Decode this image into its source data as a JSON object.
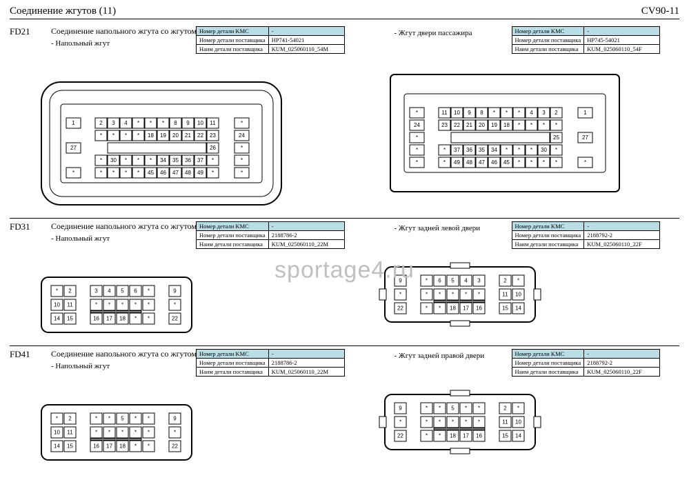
{
  "header": {
    "left": "Соединение   жгутов   (11)",
    "right": "CV90-11"
  },
  "watermark": "sportage4.ru",
  "th": [
    "Номер  детали  KMC",
    "Номер детали поставщика",
    "Наим детали поставщика"
  ],
  "sections": [
    {
      "id": "FD21",
      "title": "Соединение   напольного   жгута  со  жгутом  двери  пассажира",
      "left": {
        "sub": "- Напольный жгут",
        "vals": [
          "-",
          "HP741-54021",
          "KUM_025060110_54M"
        ]
      },
      "right": {
        "sub": "- Жгут двери  пассажира",
        "vals": [
          "-",
          "HP745-54021",
          "KUM_025060110_54F"
        ]
      },
      "big": true,
      "pinsL": {
        "r1": [
          "1",
          "",
          "2",
          "3",
          "4",
          "*",
          "*",
          "*",
          "8",
          "9",
          "10",
          "11",
          "",
          "*"
        ],
        "r2": [
          "",
          "",
          "*",
          "*",
          "*",
          "*",
          "18",
          "19",
          "20",
          "21",
          "22",
          "23",
          "",
          "24"
        ],
        "r3": [
          "27",
          "",
          "",
          "25",
          "",
          "",
          "",
          "",
          "",
          "",
          "",
          "26",
          "",
          "*"
        ],
        "r4": [
          "",
          "",
          "*",
          "30",
          "*",
          "*",
          "*",
          "34",
          "35",
          "36",
          "37",
          "*",
          "",
          "*"
        ],
        "r5": [
          "*",
          "",
          "*",
          "*",
          "*",
          "*",
          "45",
          "46",
          "47",
          "48",
          "49",
          "*",
          "",
          "*"
        ]
      },
      "pinsR": {
        "r1": [
          "*",
          "",
          "11",
          "10",
          "9",
          "8",
          "*",
          "*",
          "*",
          "4",
          "3",
          "2",
          "",
          "1"
        ],
        "r2": [
          "24",
          "",
          "23",
          "22",
          "21",
          "20",
          "19",
          "18",
          "*",
          "*",
          "*",
          "*",
          "",
          ""
        ],
        "r3": [
          "*",
          "",
          "",
          "26",
          "",
          "",
          "",
          "",
          "",
          "",
          "",
          "25",
          "",
          "27"
        ],
        "r4": [
          "*",
          "",
          "*",
          "37",
          "36",
          "35",
          "34",
          "*",
          "*",
          "*",
          "30",
          "*",
          "",
          ""
        ],
        "r5": [
          "*",
          "",
          "*",
          "49",
          "48",
          "47",
          "46",
          "45",
          "*",
          "*",
          "*",
          "*",
          "",
          "*"
        ]
      }
    },
    {
      "id": "FD31",
      "title": "Соединение   напольного   жгута  со  жгутом  задней  левой  двери",
      "left": {
        "sub": "- Напольный жгут",
        "vals": [
          "-",
          "2188786-2",
          "KUM_025060110_22M"
        ]
      },
      "right": {
        "sub": "- Жгут задней  левой  двери",
        "vals": [
          "-",
          "2188792-2",
          "KUM_025060110_22F"
        ]
      },
      "big": false,
      "pinsL": {
        "r1": [
          "*",
          "2",
          "",
          "3",
          "4",
          "5",
          "6",
          "*",
          "",
          "9"
        ],
        "r2": [
          "10",
          "11",
          "",
          "*",
          "*",
          "*",
          "*",
          "*",
          "",
          "*"
        ],
        "r3": [
          "14",
          "15",
          "",
          "16",
          "17",
          "18",
          "*",
          "*",
          "",
          "22"
        ]
      },
      "pinsR": {
        "r1": [
          "9",
          "",
          "*",
          "6",
          "5",
          "4",
          "3",
          "",
          "2",
          "*"
        ],
        "r2": [
          "*",
          "",
          "*",
          "*",
          "*",
          "*",
          "*",
          "",
          "11",
          "10"
        ],
        "r3": [
          "22",
          "",
          "*",
          "*",
          "18",
          "17",
          "16",
          "",
          "15",
          "14"
        ]
      }
    },
    {
      "id": "FD41",
      "title": "Соединение   напольного   жгута  со  жгутом  задней  правой  двери",
      "left": {
        "sub": "- Напольный жгут",
        "vals": [
          "-",
          "2188786-2",
          "KUM_025060110_22M"
        ]
      },
      "right": {
        "sub": "- Жгут задней  правой  двери",
        "vals": [
          "-",
          "2188792-2",
          "KUM_025060110_22F"
        ]
      },
      "big": false,
      "pinsL": {
        "r1": [
          "*",
          "2",
          "",
          "*",
          "*",
          "5",
          "*",
          "*",
          "",
          "9"
        ],
        "r2": [
          "10",
          "11",
          "",
          "*",
          "*",
          "*",
          "*",
          "*",
          "",
          "*"
        ],
        "r3": [
          "14",
          "15",
          "",
          "16",
          "17",
          "18",
          "*",
          "*",
          "",
          "22"
        ]
      },
      "pinsR": {
        "r1": [
          "9",
          "",
          "*",
          "*",
          "5",
          "*",
          "*",
          "",
          "2",
          "*"
        ],
        "r2": [
          "*",
          "",
          "*",
          "*",
          "*",
          "*",
          "*",
          "",
          "11",
          "10"
        ],
        "r3": [
          "22",
          "",
          "*",
          "*",
          "18",
          "17",
          "16",
          "",
          "15",
          "14"
        ]
      }
    }
  ]
}
